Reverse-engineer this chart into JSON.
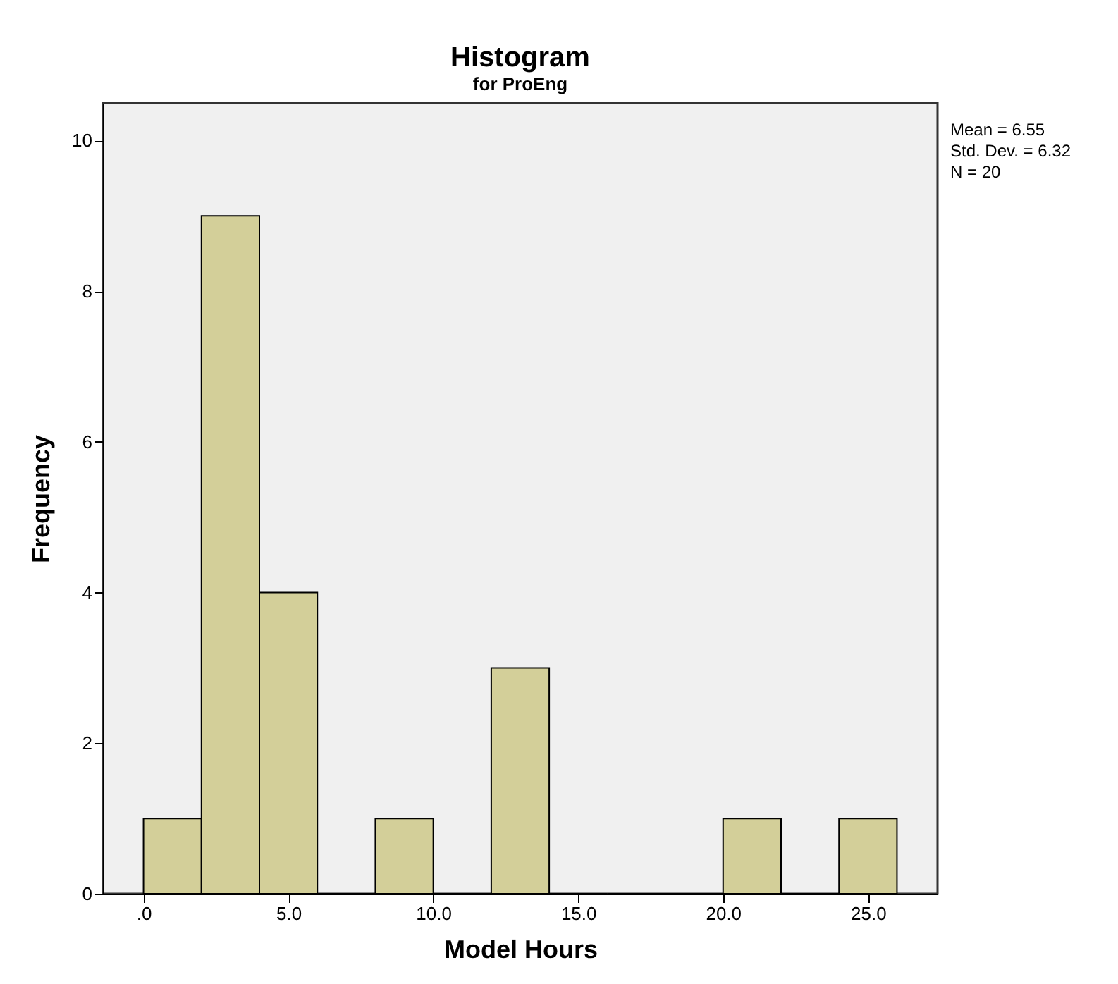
{
  "chart_data": {
    "type": "histogram",
    "title": "Histogram",
    "subtitle": "for ProEng",
    "xlabel": "Model Hours",
    "ylabel": "Frequency",
    "bins": [
      0,
      2,
      4,
      6,
      8,
      10,
      12,
      14,
      16,
      18,
      20,
      22,
      24,
      26
    ],
    "values": [
      1,
      9,
      4,
      0,
      1,
      0,
      3,
      0,
      0,
      0,
      1,
      0,
      1
    ],
    "color": "#d3cf99",
    "xlim": [
      -1.4,
      27.4
    ],
    "ylim": [
      0,
      10.5
    ],
    "xticks": [
      {
        "value": 0,
        "label": ".0"
      },
      {
        "value": 5,
        "label": "5.0"
      },
      {
        "value": 10,
        "label": "10.0"
      },
      {
        "value": 15,
        "label": "15.0"
      },
      {
        "value": 20,
        "label": "20.0"
      },
      {
        "value": 25,
        "label": "25.0"
      }
    ],
    "yticks": [
      0,
      2,
      4,
      6,
      8,
      10
    ],
    "grid": false,
    "annotations": [
      "Mean = 6.55",
      "Std. Dev. = 6.32",
      "N = 20"
    ]
  }
}
